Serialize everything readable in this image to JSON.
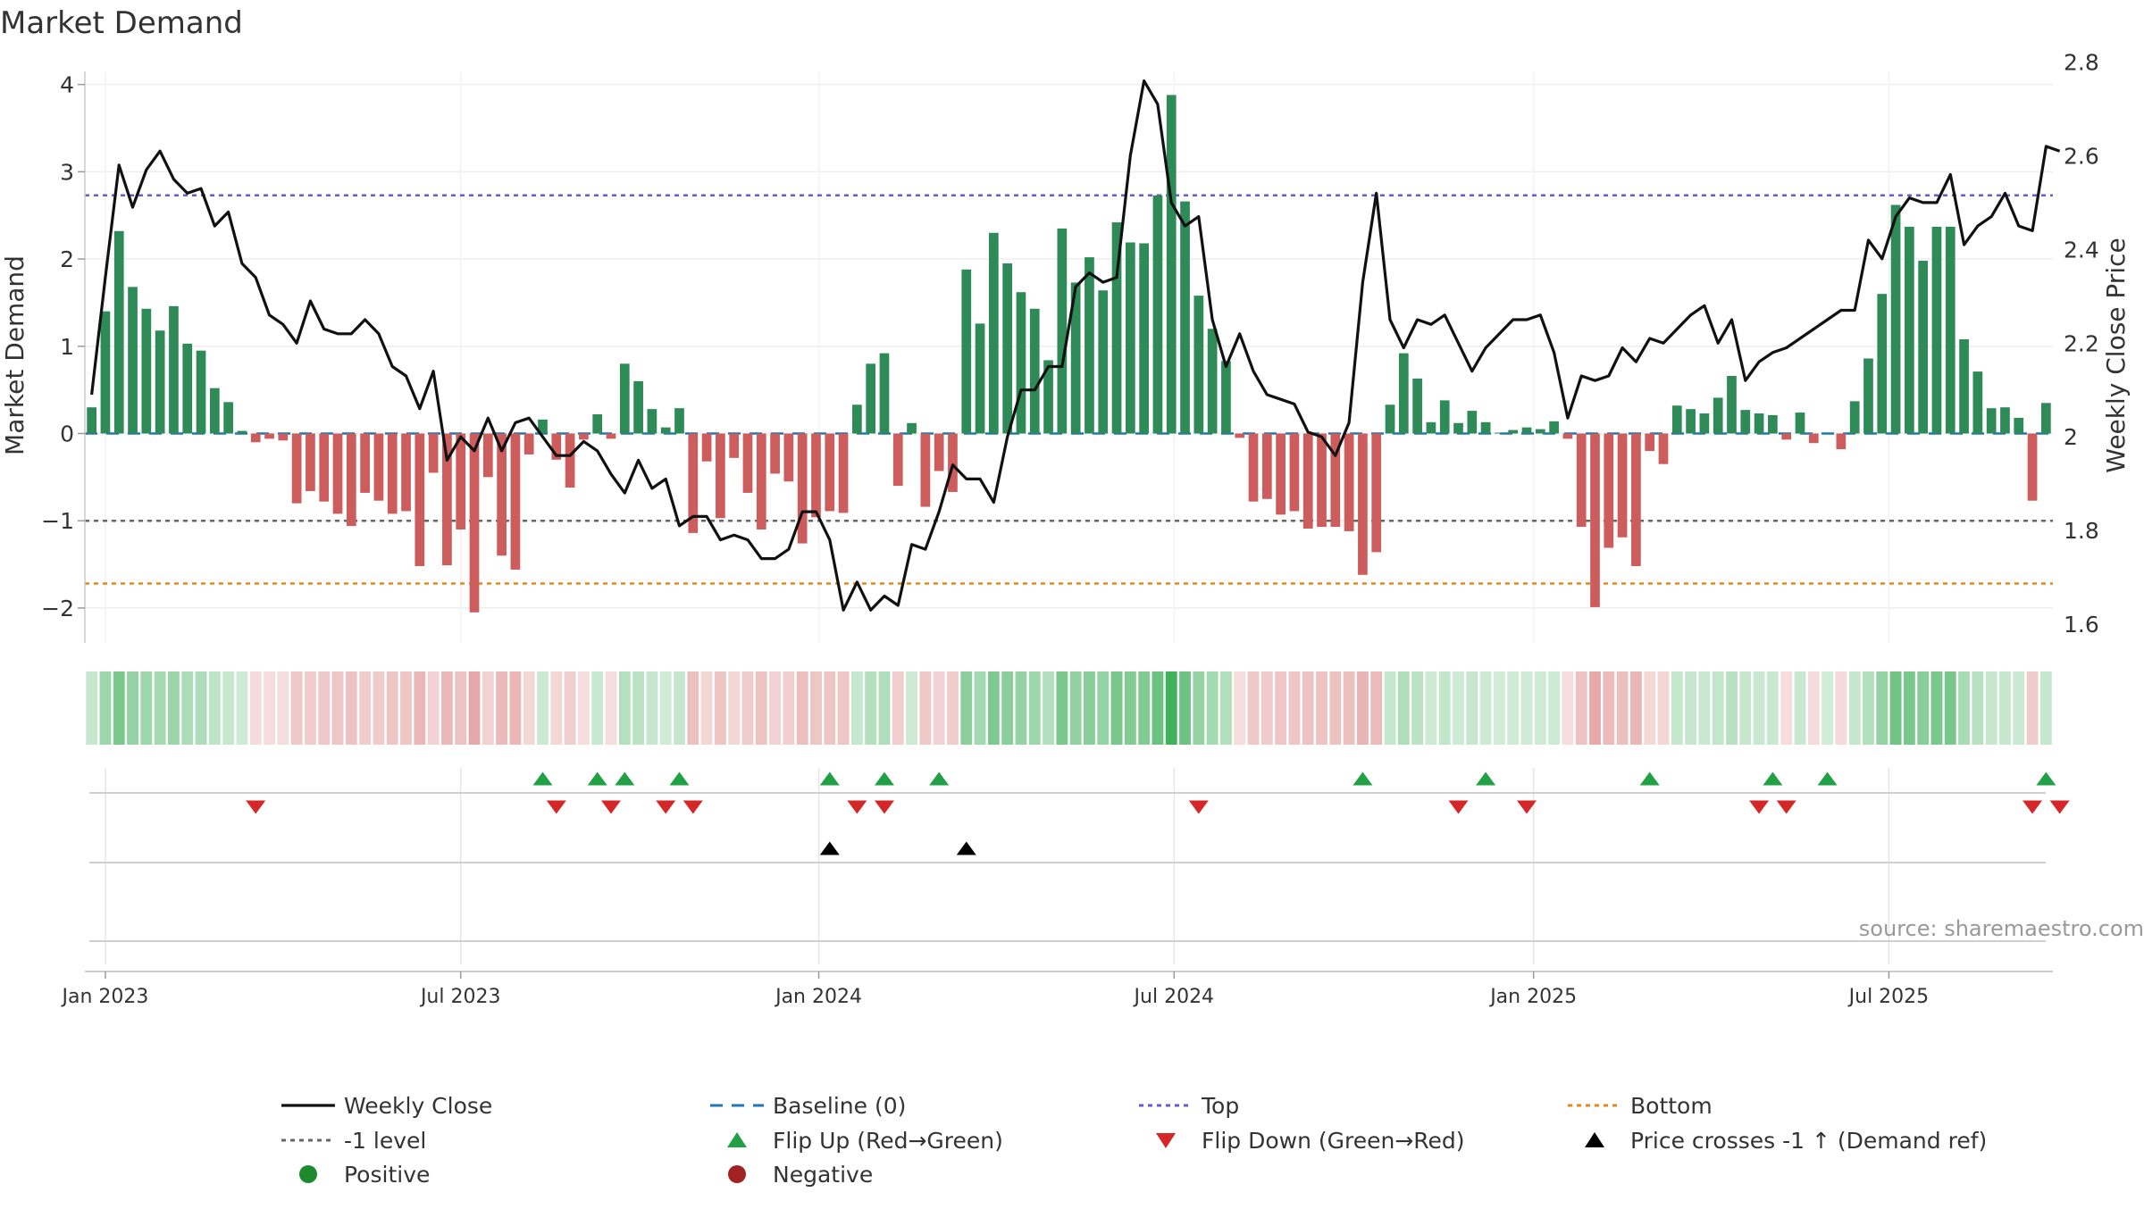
{
  "chart_data": {
    "type": "bar",
    "title": "Market Demand",
    "ylabel_left": "Market Demand",
    "ylabel_right": "Weekly Close Price",
    "source": "source: sharemaestro.com",
    "left_axis": {
      "range": [
        -2.4,
        4.15
      ],
      "ticks": [
        -2,
        -1,
        0,
        1,
        2,
        3,
        4
      ],
      "tick_labels": [
        "−2",
        "−1",
        "0",
        "1",
        "2",
        "3",
        "4"
      ]
    },
    "right_axis": {
      "range": [
        1.56,
        2.78
      ],
      "ticks": [
        1.6,
        1.8,
        2.0,
        2.2,
        2.4,
        2.6,
        2.8
      ],
      "tick_labels": [
        "1.6",
        "1.8",
        "2",
        "2.2",
        "2.4",
        "2.6",
        "2.8"
      ]
    },
    "x_axis": {
      "start_date": "2022-12-26",
      "weeks": 144,
      "ticks": [
        {
          "label": "Jan 2023",
          "week": 1
        },
        {
          "label": "Jul 2023",
          "week": 27
        },
        {
          "label": "Jan 2024",
          "week": 53.2
        },
        {
          "label": "Jul 2024",
          "week": 79.2
        },
        {
          "label": "Jan 2025",
          "week": 105.5
        },
        {
          "label": "Jul 2025",
          "week": 131.5
        }
      ]
    },
    "reference_lines": {
      "top": 2.73,
      "bottom": -1.72,
      "minus_one": -1,
      "baseline": 0
    },
    "series": [
      {
        "name": "Market Demand",
        "values": [
          0.3,
          1.4,
          2.32,
          1.68,
          1.43,
          1.18,
          1.46,
          1.03,
          0.95,
          0.52,
          0.36,
          0.03,
          -0.1,
          -0.06,
          -0.08,
          -0.8,
          -0.66,
          -0.78,
          -0.92,
          -1.06,
          -0.68,
          -0.77,
          -0.92,
          -0.89,
          -1.52,
          -0.45,
          -1.51,
          -1.1,
          -2.05,
          -0.5,
          -1.4,
          -1.56,
          -0.24,
          0.16,
          -0.3,
          -0.62,
          -0.07,
          0.22,
          -0.06,
          0.8,
          0.6,
          0.28,
          0.07,
          0.29,
          -1.14,
          -0.32,
          -0.97,
          -0.28,
          -0.68,
          -1.1,
          -0.46,
          -0.55,
          -1.26,
          -0.96,
          -0.89,
          -0.91,
          0.33,
          0.8,
          0.92,
          -0.6,
          0.12,
          -0.84,
          -0.43,
          -0.67,
          1.88,
          1.26,
          2.3,
          1.95,
          1.62,
          1.43,
          0.84,
          2.35,
          1.73,
          2.02,
          1.64,
          2.42,
          2.19,
          2.18,
          2.73,
          3.88,
          2.66,
          1.58,
          1.2,
          0.83,
          -0.05,
          -0.78,
          -0.75,
          -0.93,
          -0.89,
          -1.09,
          -1.07,
          -1.07,
          -1.12,
          -1.62,
          -1.36,
          0.33,
          0.92,
          0.63,
          0.13,
          0.38,
          0.12,
          0.26,
          0.13,
          0.01,
          0.04,
          0.07,
          0.05,
          0.14,
          -0.06,
          -1.07,
          -1.99,
          -1.31,
          -1.19,
          -1.52,
          -0.2,
          -0.35,
          0.32,
          0.28,
          0.23,
          0.41,
          0.66,
          0.27,
          0.23,
          0.21,
          -0.07,
          0.24,
          -0.11,
          0,
          -0.18,
          0.37,
          0.86,
          1.6,
          2.62,
          2.37,
          1.98,
          2.37,
          2.37,
          1.08,
          0.71,
          0.29,
          0.3,
          0.18,
          -0.77,
          0.35
        ]
      },
      {
        "name": "Weekly Close",
        "values": [
          2.09,
          2.34,
          2.58,
          2.49,
          2.57,
          2.61,
          2.55,
          2.52,
          2.53,
          2.45,
          2.48,
          2.37,
          2.34,
          2.26,
          2.24,
          2.2,
          2.29,
          2.23,
          2.22,
          2.22,
          2.25,
          2.22,
          2.15,
          2.13,
          2.06,
          2.14,
          1.95,
          2.0,
          1.97,
          2.04,
          1.97,
          2.03,
          2.04,
          2.0,
          1.96,
          1.96,
          1.99,
          1.97,
          1.92,
          1.88,
          1.95,
          1.89,
          1.91,
          1.81,
          1.83,
          1.83,
          1.78,
          1.79,
          1.78,
          1.74,
          1.74,
          1.76,
          1.84,
          1.84,
          1.78,
          1.63,
          1.69,
          1.63,
          1.66,
          1.64,
          1.77,
          1.76,
          1.84,
          1.94,
          1.91,
          1.91,
          1.86,
          2.0,
          2.1,
          2.1,
          2.15,
          2.15,
          2.32,
          2.35,
          2.33,
          2.34,
          2.6,
          2.76,
          2.71,
          2.5,
          2.45,
          2.47,
          2.25,
          2.15,
          2.22,
          2.14,
          2.09,
          2.08,
          2.07,
          2.01,
          2.0,
          1.96,
          2.03,
          2.33,
          2.52,
          2.25,
          2.19,
          2.25,
          2.24,
          2.26,
          2.2,
          2.14,
          2.19,
          2.22,
          2.25,
          2.25,
          2.26,
          2.18,
          2.04,
          2.13,
          2.12,
          2.13,
          2.19,
          2.16,
          2.21,
          2.2,
          2.23,
          2.26,
          2.28,
          2.2,
          2.25,
          2.12,
          2.16,
          2.18,
          2.19,
          2.21,
          2.23,
          2.25,
          2.27,
          2.27,
          2.42,
          2.38,
          2.47,
          2.51,
          2.5,
          2.5,
          2.56,
          2.41,
          2.45,
          2.47,
          2.52,
          2.45,
          2.44,
          2.62,
          2.61
        ]
      }
    ],
    "heat_strip": {
      "description_values": "same as Market Demand series"
    },
    "events": {
      "flip_up_weeks": [
        33,
        37,
        39,
        43,
        54,
        58,
        62,
        93,
        102,
        114,
        123,
        127,
        143
      ],
      "flip_down_weeks": [
        12,
        34,
        38,
        42,
        44,
        56,
        58,
        81,
        100,
        105,
        122,
        124,
        142,
        144
      ],
      "price_cross_weeks": [
        54,
        64
      ]
    },
    "legend": [
      {
        "label": "Weekly Close",
        "marker": "solid-line",
        "color": "#111111"
      },
      {
        "label": "Baseline (0)",
        "marker": "dashed-line",
        "color": "#1f77b4"
      },
      {
        "label": "Top",
        "marker": "dotted-line",
        "color": "#6a5acd"
      },
      {
        "label": "Bottom",
        "marker": "dotted-line",
        "color": "#e08a1e"
      },
      {
        "label": "-1 level",
        "marker": "dotted-line",
        "color": "#666666"
      },
      {
        "label": "Flip Up (Red→Green)",
        "marker": "triangle-up",
        "color": "#22a045"
      },
      {
        "label": "Flip Down (Green→Red)",
        "marker": "triangle-down",
        "color": "#d62728"
      },
      {
        "label": "Price crosses -1 ↑ (Demand ref)",
        "marker": "triangle-up",
        "color": "#000000"
      },
      {
        "label": "Positive",
        "marker": "circle",
        "color": "#1e8a2e"
      },
      {
        "label": "Negative",
        "marker": "circle",
        "color": "#a12222"
      }
    ],
    "colors": {
      "positive_bar": "#2e8b57",
      "negative_bar": "#cd5c5c",
      "price_line": "#111111",
      "baseline": "#1f77b4",
      "top_line": "#6a5acd",
      "bottom_line": "#e08a1e",
      "minus_one_line": "#666666",
      "flip_up": "#22a045",
      "flip_down": "#d62728",
      "cross": "#000000",
      "strip_positive": "#2ea84a",
      "strip_negative": "#d46a6a"
    }
  }
}
